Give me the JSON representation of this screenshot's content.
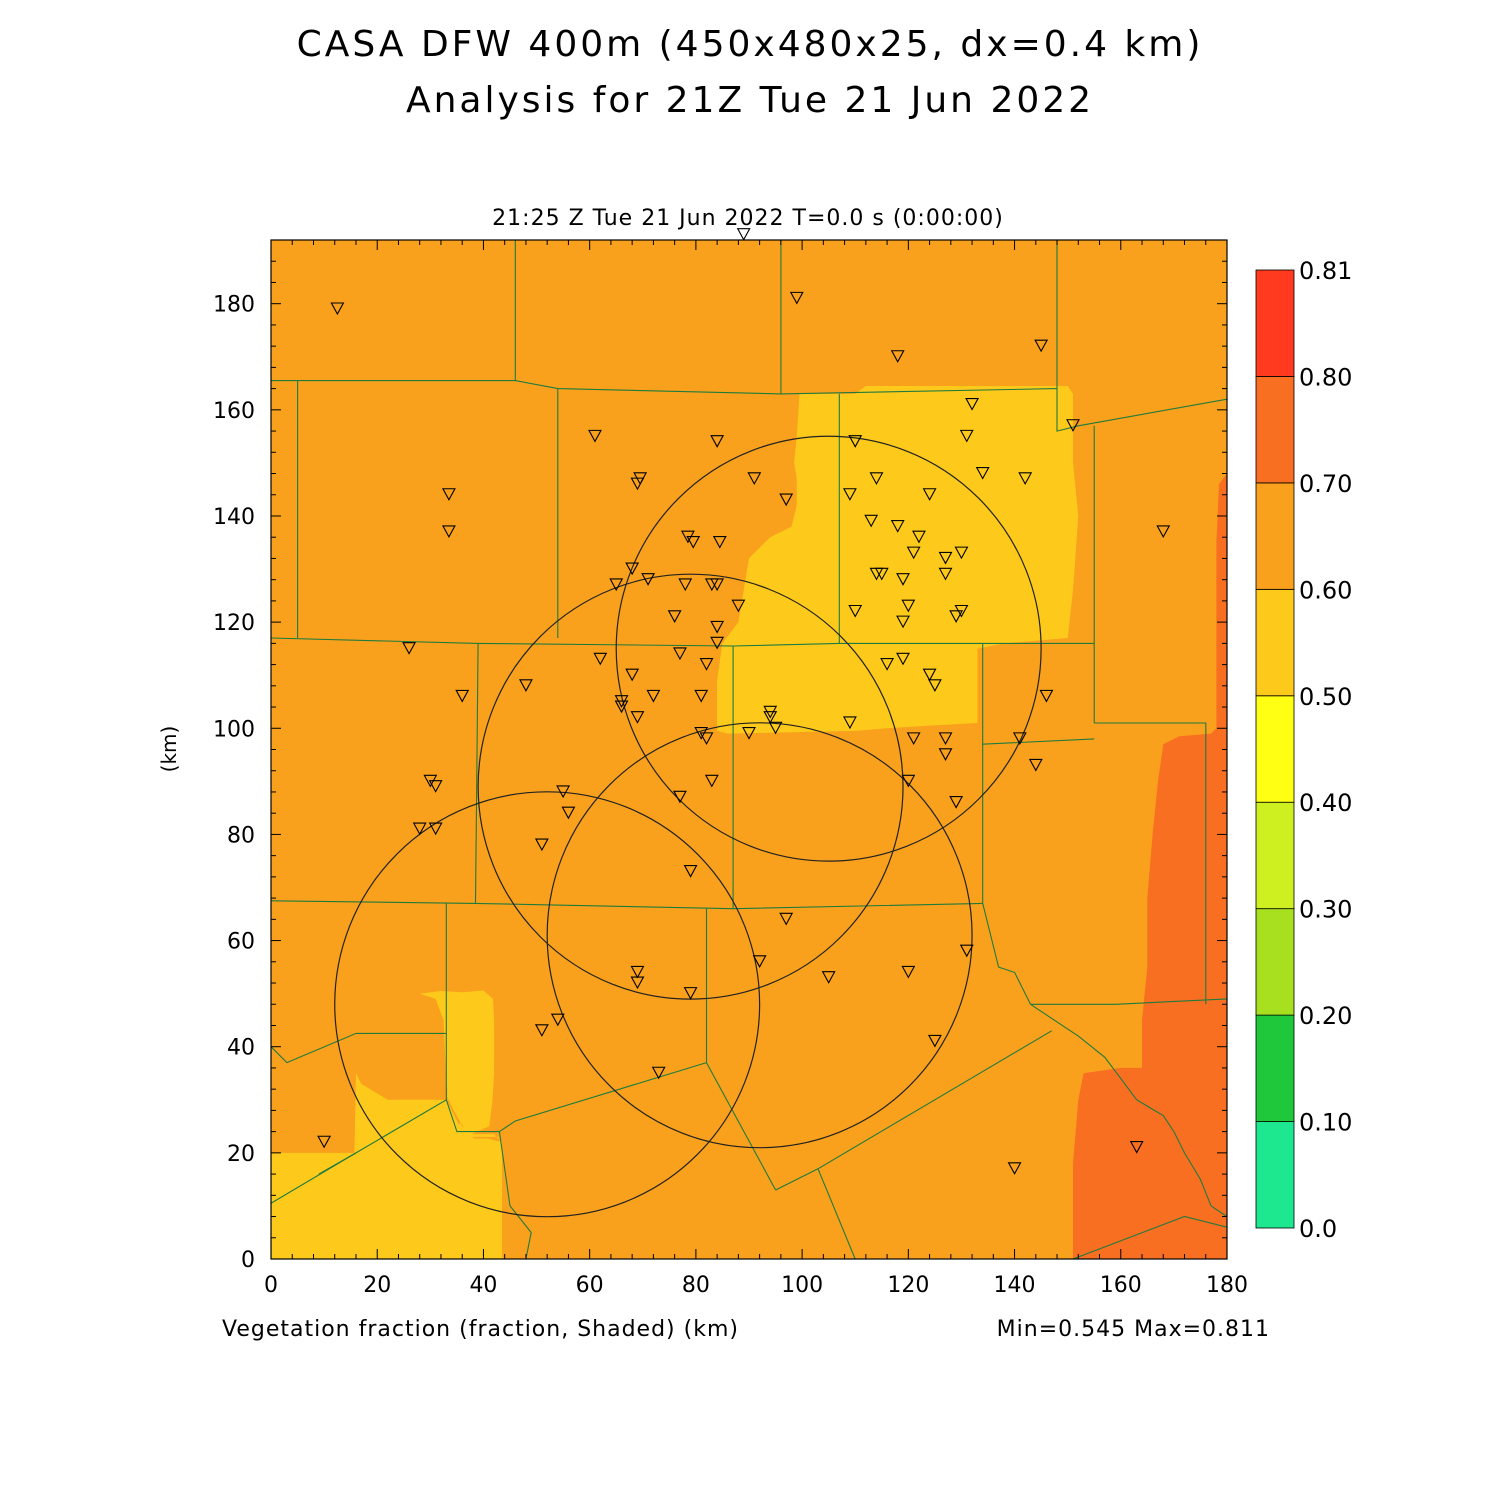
{
  "title": {
    "line1": "CASA DFW 400m (450x480x25, dx=0.4 km)",
    "line2": "Analysis for 21Z Tue 21 Jun 2022"
  },
  "plot": {
    "time_label": "21:25 Z Tue 21 Jun 2022   T=0.0 s (0:00:00)",
    "field_label": "Vegetation fraction (fraction, Shaded)  (km)",
    "min_max": "Min=0.545 Max=0.811",
    "ylabel": "(km)"
  },
  "chart_data": {
    "type": "heatmap",
    "variable": "Vegetation fraction",
    "units": "fraction",
    "xlim": [
      0,
      180
    ],
    "ylim": [
      0,
      192
    ],
    "x_ticks": [
      0,
      20,
      40,
      60,
      80,
      100,
      120,
      140,
      160,
      180
    ],
    "y_ticks": [
      0,
      20,
      40,
      60,
      80,
      100,
      120,
      140,
      160,
      180
    ],
    "min": 0.545,
    "max": 0.811,
    "colorbar": {
      "levels": [
        "0.0",
        "0.10",
        "0.20",
        "0.30",
        "0.40",
        "0.50",
        "0.60",
        "0.70",
        "0.80",
        "0.81"
      ],
      "colors": [
        "#1de88f",
        "#1ec83a",
        "#a8e020",
        "#cff020",
        "#ffff14",
        "#fdca1b",
        "#f9a11c",
        "#f96f22",
        "#ff3a1e"
      ]
    },
    "regions": [
      {
        "level": "0.60-0.70",
        "color": "#f9a11c",
        "polygon": [
          [
            0,
            0
          ],
          [
            180,
            0
          ],
          [
            180,
            192
          ],
          [
            0,
            192
          ]
        ]
      },
      {
        "level": "0.50-0.60",
        "color": "#fdca1b",
        "polygon": [
          [
            99.5,
            163
          ],
          [
            110,
            163
          ],
          [
            112,
            164.5
          ],
          [
            150,
            164.5
          ],
          [
            151,
            163
          ],
          [
            151,
            150
          ],
          [
            152,
            140
          ],
          [
            151,
            126
          ],
          [
            150,
            117
          ],
          [
            138,
            116
          ],
          [
            133,
            115
          ],
          [
            133,
            101
          ],
          [
            124,
            100.5
          ],
          [
            116,
            100
          ],
          [
            110,
            99.5
          ],
          [
            86,
            99
          ],
          [
            84,
            99.5
          ],
          [
            84,
            109
          ],
          [
            85,
            116
          ],
          [
            88,
            120
          ],
          [
            89,
            126
          ],
          [
            90,
            132
          ],
          [
            94,
            136
          ],
          [
            98,
            138
          ],
          [
            99,
            142
          ],
          [
            99,
            147
          ],
          [
            98.5,
            150
          ],
          [
            99,
            155
          ]
        ]
      },
      {
        "level": "0.50-0.60",
        "color": "#fdca1b",
        "polygon": [
          [
            0,
            0
          ],
          [
            43.5,
            0
          ],
          [
            43.5,
            22
          ],
          [
            42,
            23.5
          ],
          [
            38,
            23.5
          ],
          [
            36,
            25
          ],
          [
            34,
            29
          ],
          [
            33,
            33
          ],
          [
            32.5,
            45
          ],
          [
            31,
            49
          ],
          [
            28,
            50
          ],
          [
            32,
            50.5
          ],
          [
            40,
            50
          ],
          [
            41,
            49
          ],
          [
            42,
            44
          ],
          [
            42,
            38
          ],
          [
            41,
            33
          ],
          [
            39,
            30
          ],
          [
            36,
            26
          ],
          [
            34,
            24
          ],
          [
            33,
            23
          ],
          [
            43,
            23
          ],
          [
            43,
            0
          ]
        ]
      },
      {
        "level": "0.50-0.60",
        "color": "#fdca1b",
        "polygon": [
          [
            0,
            0
          ],
          [
            43.5,
            0
          ],
          [
            43.5,
            22
          ],
          [
            40.8,
            22.7
          ],
          [
            38.2,
            22.7
          ],
          [
            36.3,
            24.8
          ],
          [
            34.4,
            28
          ],
          [
            33.2,
            30.5
          ],
          [
            33.2,
            50
          ],
          [
            40,
            50.6
          ],
          [
            41.8,
            49
          ],
          [
            42,
            45
          ],
          [
            42,
            35
          ],
          [
            41.7,
            30
          ],
          [
            41.1,
            25
          ],
          [
            36.5,
            23
          ],
          [
            33,
            30
          ],
          [
            22,
            30
          ],
          [
            17,
            33
          ],
          [
            16,
            35
          ],
          [
            15.7,
            20
          ],
          [
            12,
            20
          ],
          [
            0,
            20
          ]
        ]
      },
      {
        "level": "0.70-0.80",
        "color": "#f96f22",
        "polygon": [
          [
            151,
            0
          ],
          [
            180,
            0
          ],
          [
            180,
            148
          ],
          [
            178.5,
            146
          ],
          [
            178,
            135
          ],
          [
            178,
            100
          ],
          [
            177,
            99
          ],
          [
            171,
            98.5
          ],
          [
            168,
            97
          ],
          [
            167,
            90
          ],
          [
            166,
            80
          ],
          [
            165,
            68
          ],
          [
            165,
            55
          ],
          [
            164,
            45
          ],
          [
            164,
            36
          ],
          [
            160,
            36
          ],
          [
            153,
            35
          ],
          [
            152,
            30
          ],
          [
            151,
            18
          ],
          [
            151,
            0
          ]
        ]
      }
    ],
    "boundaries": [
      [
        [
          0,
          165.5
        ],
        [
          46,
          165.5
        ],
        [
          46,
          192
        ]
      ],
      [
        [
          46,
          165.5
        ],
        [
          54,
          164
        ],
        [
          96,
          163
        ]
      ],
      [
        [
          96,
          163
        ],
        [
          96,
          192
        ]
      ],
      [
        [
          96,
          163
        ],
        [
          148,
          164
        ]
      ],
      [
        [
          148,
          164
        ],
        [
          148,
          192
        ]
      ],
      [
        [
          148,
          164
        ],
        [
          148,
          156
        ],
        [
          152,
          157
        ],
        [
          180,
          162
        ]
      ],
      [
        [
          5,
          165.5
        ],
        [
          5,
          117
        ]
      ],
      [
        [
          54,
          164
        ],
        [
          54,
          117
        ]
      ],
      [
        [
          0,
          117
        ],
        [
          39,
          116
        ],
        [
          87,
          115.5
        ]
      ],
      [
        [
          87,
          115.5
        ],
        [
          107,
          116
        ],
        [
          134,
          116
        ],
        [
          155,
          116
        ]
      ],
      [
        [
          107,
          163
        ],
        [
          107,
          116
        ]
      ],
      [
        [
          155,
          157
        ],
        [
          155,
          101
        ]
      ],
      [
        [
          155,
          101
        ],
        [
          176,
          101
        ],
        [
          176,
          48
        ]
      ],
      [
        [
          134,
          116
        ],
        [
          134,
          97
        ],
        [
          155,
          98
        ]
      ],
      [
        [
          39,
          116
        ],
        [
          38.5,
          67
        ]
      ],
      [
        [
          87,
          115.5
        ],
        [
          87,
          66
        ]
      ],
      [
        [
          0,
          67.5
        ],
        [
          38.5,
          67
        ],
        [
          87,
          66
        ],
        [
          134,
          67
        ]
      ],
      [
        [
          134,
          97
        ],
        [
          134,
          67
        ]
      ],
      [
        [
          134,
          67
        ],
        [
          135,
          63
        ],
        [
          137,
          55
        ],
        [
          140,
          54
        ],
        [
          143,
          48
        ],
        [
          152,
          42
        ],
        [
          157,
          38
        ],
        [
          160,
          34
        ],
        [
          163,
          30
        ],
        [
          168,
          27
        ],
        [
          170,
          24
        ],
        [
          172,
          20
        ],
        [
          175,
          15
        ],
        [
          177,
          10
        ],
        [
          180,
          8
        ]
      ],
      [
        [
          143,
          48
        ],
        [
          159,
          48
        ],
        [
          180,
          49
        ]
      ],
      [
        [
          33,
          67
        ],
        [
          33,
          42.5
        ],
        [
          16,
          42.5
        ],
        [
          3,
          37
        ],
        [
          0,
          40
        ]
      ],
      [
        [
          33,
          42.5
        ],
        [
          33,
          30
        ],
        [
          16,
          20
        ],
        [
          0,
          10.5
        ]
      ],
      [
        [
          33,
          30
        ],
        [
          35,
          24
        ],
        [
          43,
          24
        ]
      ],
      [
        [
          16,
          20
        ],
        [
          9,
          16
        ]
      ],
      [
        [
          43,
          24
        ],
        [
          46,
          26
        ],
        [
          82,
          37
        ]
      ],
      [
        [
          82,
          37
        ],
        [
          82,
          66
        ]
      ],
      [
        [
          82,
          37
        ],
        [
          95,
          13
        ]
      ],
      [
        [
          95,
          13
        ],
        [
          103,
          17
        ],
        [
          147,
          43
        ]
      ],
      [
        [
          103,
          17
        ],
        [
          110,
          0
        ]
      ],
      [
        [
          43,
          24
        ],
        [
          44,
          17
        ],
        [
          45,
          10
        ],
        [
          49,
          5
        ],
        [
          48,
          0
        ]
      ],
      [
        [
          0,
          3
        ],
        [
          0,
          0
        ]
      ],
      [
        [
          151,
          0
        ],
        [
          172,
          8
        ],
        [
          180,
          6
        ]
      ]
    ],
    "radar_rings": [
      {
        "cx": 105,
        "cy": 115,
        "r": 40
      },
      {
        "cx": 79,
        "cy": 89,
        "r": 40
      },
      {
        "cx": 92,
        "cy": 61,
        "r": 40
      },
      {
        "cx": 52,
        "cy": 48,
        "r": 40
      }
    ],
    "stations": [
      [
        12.5,
        179
      ],
      [
        89,
        193
      ],
      [
        99,
        181
      ],
      [
        118,
        170
      ],
      [
        145,
        172
      ],
      [
        132,
        161
      ],
      [
        61,
        155
      ],
      [
        84,
        154
      ],
      [
        110,
        154
      ],
      [
        131,
        155
      ],
      [
        151,
        157
      ],
      [
        33.5,
        144
      ],
      [
        33.5,
        137
      ],
      [
        69.5,
        147
      ],
      [
        69,
        146
      ],
      [
        91,
        147
      ],
      [
        97,
        143
      ],
      [
        109,
        144
      ],
      [
        114,
        147
      ],
      [
        124,
        144
      ],
      [
        134,
        148
      ],
      [
        142,
        147
      ],
      [
        168,
        137
      ],
      [
        78.5,
        136
      ],
      [
        79.5,
        135
      ],
      [
        84.5,
        135
      ],
      [
        113,
        139
      ],
      [
        118,
        138
      ],
      [
        122,
        136
      ],
      [
        121,
        133
      ],
      [
        127,
        132
      ],
      [
        130,
        133
      ],
      [
        65,
        127
      ],
      [
        68,
        130
      ],
      [
        71,
        128
      ],
      [
        78,
        127
      ],
      [
        84,
        127
      ],
      [
        83,
        127
      ],
      [
        114,
        129
      ],
      [
        115,
        129
      ],
      [
        119,
        128
      ],
      [
        127,
        129
      ],
      [
        88,
        123
      ],
      [
        76,
        121
      ],
      [
        110,
        122
      ],
      [
        120,
        123
      ],
      [
        129,
        121
      ],
      [
        130,
        122
      ],
      [
        119,
        120
      ],
      [
        84,
        119
      ],
      [
        26,
        115
      ],
      [
        62,
        113
      ],
      [
        77,
        114
      ],
      [
        82,
        112
      ],
      [
        84,
        116
      ],
      [
        116,
        112
      ],
      [
        119,
        113
      ],
      [
        124,
        110
      ],
      [
        125,
        108
      ],
      [
        36,
        106
      ],
      [
        48,
        108
      ],
      [
        66,
        105
      ],
      [
        66,
        104
      ],
      [
        68,
        110
      ],
      [
        69,
        102
      ],
      [
        72,
        106
      ],
      [
        81,
        106
      ],
      [
        94,
        103
      ],
      [
        94,
        102
      ],
      [
        95,
        100
      ],
      [
        109,
        101
      ],
      [
        146,
        106
      ],
      [
        81,
        99
      ],
      [
        82,
        98
      ],
      [
        90,
        99
      ],
      [
        121,
        98
      ],
      [
        127,
        98
      ],
      [
        127,
        95
      ],
      [
        141,
        98
      ],
      [
        144,
        93
      ],
      [
        30,
        90
      ],
      [
        31,
        89
      ],
      [
        55,
        88
      ],
      [
        56,
        84
      ],
      [
        28,
        81
      ],
      [
        31,
        81
      ],
      [
        51,
        78
      ],
      [
        77,
        87
      ],
      [
        83,
        90
      ],
      [
        120,
        90
      ],
      [
        129,
        86
      ],
      [
        79,
        73
      ],
      [
        97,
        64
      ],
      [
        69,
        54
      ],
      [
        69,
        52
      ],
      [
        79,
        50
      ],
      [
        92,
        56
      ],
      [
        105,
        53
      ],
      [
        131,
        58
      ],
      [
        120,
        54
      ],
      [
        51,
        43
      ],
      [
        54,
        45
      ],
      [
        73,
        35
      ],
      [
        125,
        41
      ],
      [
        10,
        22
      ],
      [
        140,
        17
      ],
      [
        163,
        21
      ]
    ]
  }
}
